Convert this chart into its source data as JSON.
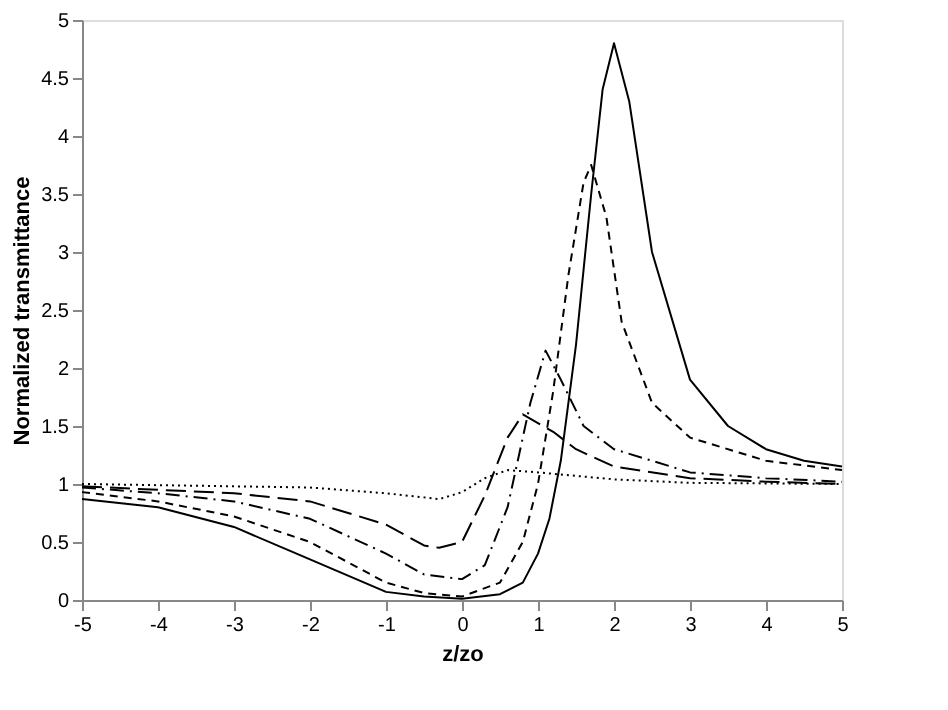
{
  "chart_data": {
    "type": "line",
    "xlabel": "z/zo",
    "ylabel": "Normalized transmittance",
    "xlim": [
      -5,
      5
    ],
    "ylim": [
      0,
      5
    ],
    "xticks": [
      -5,
      -4,
      -3,
      -2,
      -1,
      0,
      1,
      2,
      3,
      4,
      5
    ],
    "yticks": [
      0,
      0.5,
      1,
      1.5,
      2,
      2.5,
      3,
      3.5,
      4,
      4.5,
      5
    ],
    "grid": false,
    "marker": "none",
    "series": [
      {
        "color": "#000000",
        "line_style": "solid",
        "x": [
          -5,
          -4,
          -3,
          -2,
          -1,
          -0.5,
          0,
          0.5,
          0.8,
          1,
          1.15,
          1.3,
          1.5,
          1.7,
          1.85,
          2,
          2.2,
          2.5,
          3,
          3.5,
          4,
          4.5,
          5
        ],
        "values": [
          0.87,
          0.8,
          0.63,
          0.35,
          0.07,
          0.03,
          0.01,
          0.05,
          0.15,
          0.4,
          0.7,
          1.2,
          2.2,
          3.5,
          4.4,
          4.8,
          4.3,
          3.0,
          1.9,
          1.5,
          1.3,
          1.2,
          1.15
        ]
      },
      {
        "color": "#000000",
        "line_style": "dashed",
        "x": [
          -5,
          -4,
          -3,
          -2,
          -1,
          -0.5,
          0,
          0.5,
          0.8,
          1,
          1.2,
          1.4,
          1.6,
          1.7,
          1.9,
          2.1,
          2.5,
          3,
          4,
          5
        ],
        "values": [
          0.93,
          0.85,
          0.72,
          0.5,
          0.15,
          0.06,
          0.03,
          0.15,
          0.5,
          1.0,
          1.8,
          2.8,
          3.6,
          3.75,
          3.3,
          2.4,
          1.7,
          1.4,
          1.2,
          1.12
        ]
      },
      {
        "color": "#000000",
        "line_style": "dashdot",
        "x": [
          -5,
          -4,
          -3,
          -2,
          -1,
          -0.5,
          0,
          0.3,
          0.6,
          0.9,
          1.1,
          1.3,
          1.6,
          2,
          3,
          4,
          5
        ],
        "values": [
          0.97,
          0.92,
          0.85,
          0.7,
          0.4,
          0.22,
          0.18,
          0.3,
          0.8,
          1.7,
          2.15,
          1.9,
          1.5,
          1.3,
          1.1,
          1.05,
          1.02
        ]
      },
      {
        "color": "#000000",
        "line_style": "longdash",
        "x": [
          -5,
          -4,
          -3,
          -2,
          -1,
          -0.5,
          -0.3,
          0,
          0.3,
          0.6,
          0.8,
          1.2,
          1.5,
          2,
          3,
          4,
          5
        ],
        "values": [
          0.98,
          0.95,
          0.92,
          0.85,
          0.65,
          0.47,
          0.45,
          0.5,
          0.9,
          1.4,
          1.6,
          1.45,
          1.3,
          1.15,
          1.05,
          1.02,
          1.0
        ]
      },
      {
        "color": "#000000",
        "line_style": "dotted",
        "x": [
          -5,
          -3,
          -2,
          -1,
          -0.3,
          0,
          0.3,
          0.6,
          1,
          2,
          3,
          5
        ],
        "values": [
          1.0,
          0.98,
          0.97,
          0.92,
          0.87,
          0.93,
          1.05,
          1.12,
          1.1,
          1.04,
          1.01,
          1.0
        ]
      }
    ]
  }
}
